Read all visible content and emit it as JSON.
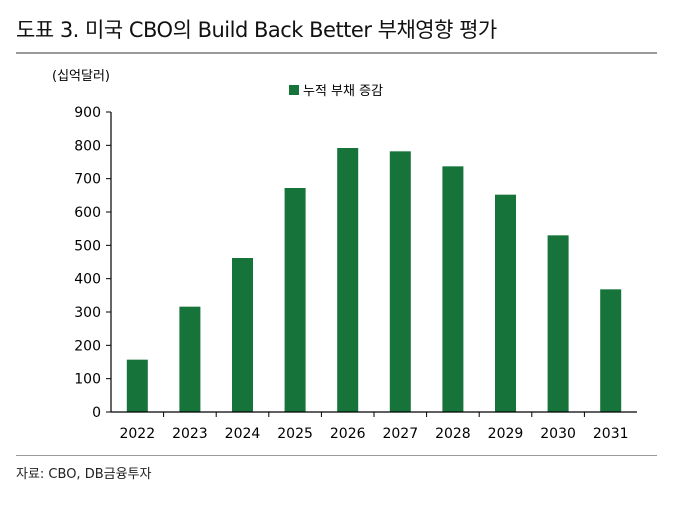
{
  "header": {
    "title": "도표 3. 미국 CBO의 Build Back Better 부채영향 평가"
  },
  "footer": {
    "source": "자료: CBO, DB금융투자"
  },
  "colors": {
    "bar": "#16733a",
    "axis": "#000000",
    "rule": "#9a9a9a"
  },
  "chart_data": {
    "type": "bar",
    "title": "",
    "unit_label": "(십억달러)",
    "xlabel": "",
    "ylabel": "",
    "categories": [
      "2022",
      "2023",
      "2024",
      "2025",
      "2026",
      "2027",
      "2028",
      "2029",
      "2030",
      "2031"
    ],
    "series": [
      {
        "name": "누적 부채 증감",
        "values": [
          157,
          316,
          462,
          672,
          792,
          782,
          737,
          652,
          530,
          368
        ]
      }
    ],
    "ylim": [
      0,
      900
    ],
    "yticks": [
      0,
      100,
      200,
      300,
      400,
      500,
      600,
      700,
      800,
      900
    ],
    "grid": false,
    "legend_position": "top-center"
  }
}
